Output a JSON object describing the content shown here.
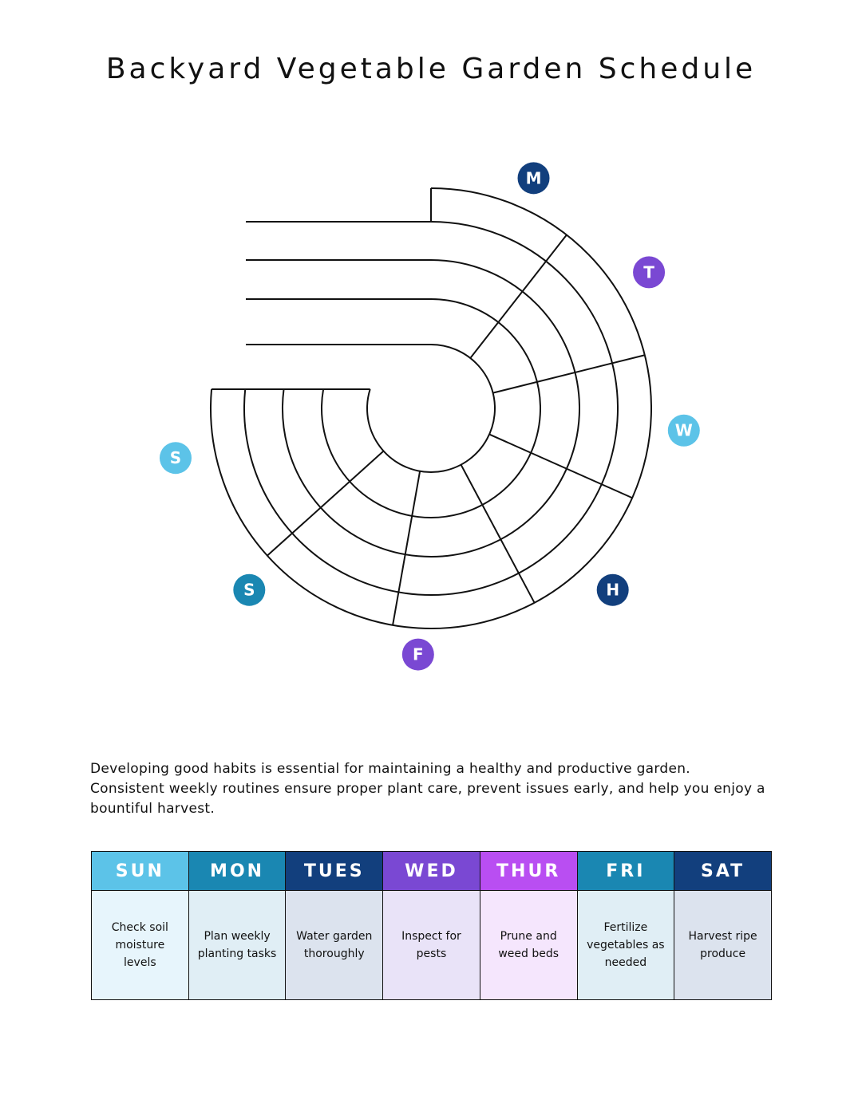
{
  "header": {
    "title": "Backyard Vegetable Garden Schedule"
  },
  "wheel": {
    "labels": [
      "M",
      "T",
      "W",
      "H",
      "F",
      "S",
      "S"
    ]
  },
  "intro": "Developing good habits is essential for maintaining a healthy and productive garden. Consistent weekly routines ensure proper plant care, prevent issues early, and help you enjoy a bountiful harvest.",
  "table": {
    "headers": [
      "SUN",
      "MON",
      "TUES",
      "WED",
      "THUR",
      "FRI",
      "SAT"
    ],
    "rows": [
      [
        "Check soil moisture levels",
        "Plan weekly planting tasks",
        "Water garden thoroughly",
        "Inspect for pests",
        "Prune and weed beds",
        "Fertilize vegetables as needed",
        "Harvest ripe produce"
      ]
    ]
  }
}
